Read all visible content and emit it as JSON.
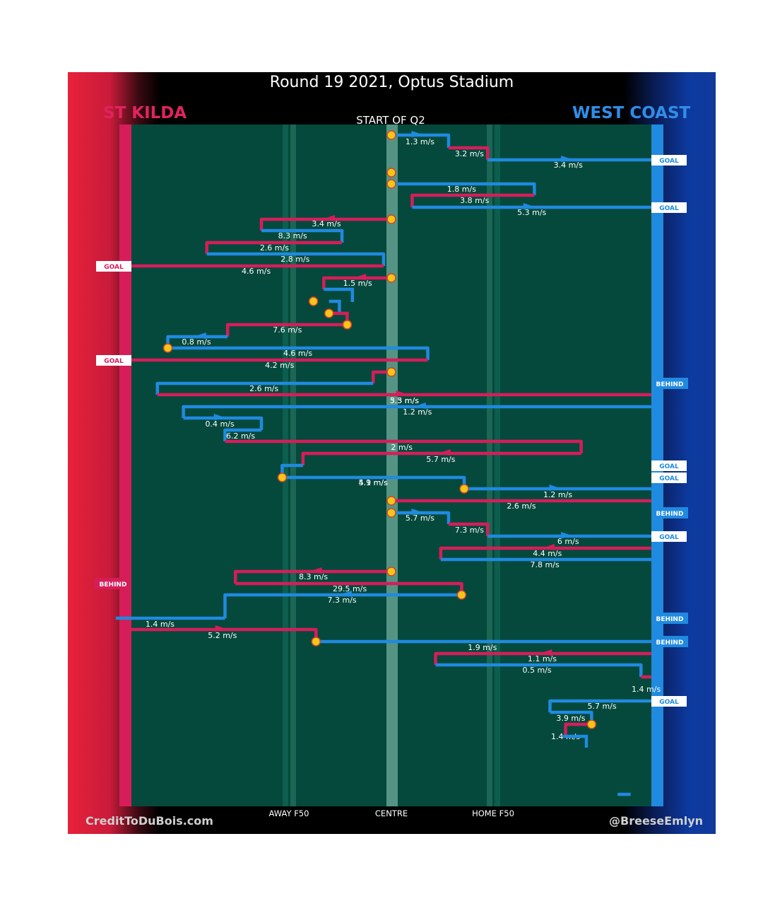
{
  "header": {
    "title": "Round 19 2021, Optus Stadium",
    "quarter": "START OF Q2"
  },
  "teams": {
    "left": "ST KILDA",
    "right": "WEST COAST"
  },
  "credits": {
    "left": "CreditToDuBois.com",
    "right": "@BreeseEmlyn"
  },
  "colors": {
    "st_kilda": "#d61d5a",
    "west_coast": "#1f8ae0",
    "field": "#05493c",
    "ball": "#f5c518"
  },
  "chart_data": {
    "type": "line",
    "x_categories": [
      "AWAY F50",
      "CENTRE",
      "HOME F50"
    ],
    "xlim": [
      -1,
      1
    ],
    "possessions": [
      {
        "team": "WC",
        "speed": "1.3 m/s"
      },
      {
        "team": "STK",
        "speed": "3.2 m/s"
      },
      {
        "team": "WC",
        "speed": "3.4 m/s",
        "result": "GOAL"
      },
      {
        "team": "WC",
        "speed": "1.8 m/s"
      },
      {
        "team": "STK",
        "speed": "3.8 m/s"
      },
      {
        "team": "WC",
        "speed": "5.3 m/s",
        "result": "GOAL"
      },
      {
        "team": "STK",
        "speed": "3.4 m/s"
      },
      {
        "team": "WC",
        "speed": "8.3 m/s"
      },
      {
        "team": "STK",
        "speed": "2.6 m/s"
      },
      {
        "team": "WC",
        "speed": "2.8 m/s"
      },
      {
        "team": "STK",
        "speed": "4.6 m/s",
        "result": "GOAL"
      },
      {
        "team": "STK",
        "speed": "1.5 m/s"
      },
      {
        "team": "STK",
        "speed": "7.6 m/s"
      },
      {
        "team": "WC",
        "speed": "0.8 m/s"
      },
      {
        "team": "WC",
        "speed": "4.6 m/s"
      },
      {
        "team": "STK",
        "speed": "4.2 m/s",
        "result": "GOAL"
      },
      {
        "team": "STK",
        "speed": "2.6 m/s"
      },
      {
        "team": "WC",
        "speed": "5.5 m/s",
        "result": "BEHIND"
      },
      {
        "team": "STK",
        "speed": "3.3 m/s"
      },
      {
        "team": "WC",
        "speed": "1.2 m/s"
      },
      {
        "team": "WC",
        "speed": "0.4 m/s"
      },
      {
        "team": "WC",
        "speed": "6.2 m/s"
      },
      {
        "team": "STK",
        "speed": "2 m/s"
      },
      {
        "team": "STK",
        "speed": "5.7 m/s"
      },
      {
        "team": "WC",
        "speed": "4.9 m/s",
        "result": "GOAL"
      },
      {
        "team": "WC",
        "speed": "5.1 m/s",
        "result": "GOAL"
      },
      {
        "team": "WC",
        "speed": "1.2 m/s"
      },
      {
        "team": "STK",
        "speed": "2.6 m/s"
      },
      {
        "team": "WC",
        "speed": "5.7 m/s",
        "result": "BEHIND"
      },
      {
        "team": "STK",
        "speed": "7.3 m/s"
      },
      {
        "team": "WC",
        "speed": "6 m/s",
        "result": "GOAL"
      },
      {
        "team": "STK",
        "speed": "4.4 m/s"
      },
      {
        "team": "WC",
        "speed": "7.8 m/s"
      },
      {
        "team": "STK",
        "speed": "8.3 m/s"
      },
      {
        "team": "STK",
        "speed": "29.5 m/s",
        "result": "BEHIND"
      },
      {
        "team": "WC",
        "speed": "7.3 m/s"
      },
      {
        "team": "WC",
        "speed": "1.4 m/s",
        "result": "BEHIND"
      },
      {
        "team": "STK",
        "speed": "5.2 m/s"
      },
      {
        "team": "WC",
        "speed": "1.9 m/s",
        "result": "BEHIND"
      },
      {
        "team": "STK",
        "speed": "1.1 m/s"
      },
      {
        "team": "WC",
        "speed": "0.5 m/s"
      },
      {
        "team": "STK",
        "speed": "1.4 m/s"
      },
      {
        "team": "WC",
        "speed": "5.7 m/s",
        "result": "GOAL"
      },
      {
        "team": "WC",
        "speed": "3.9 m/s"
      },
      {
        "team": "STK",
        "speed": "1.4 m/s"
      }
    ]
  }
}
